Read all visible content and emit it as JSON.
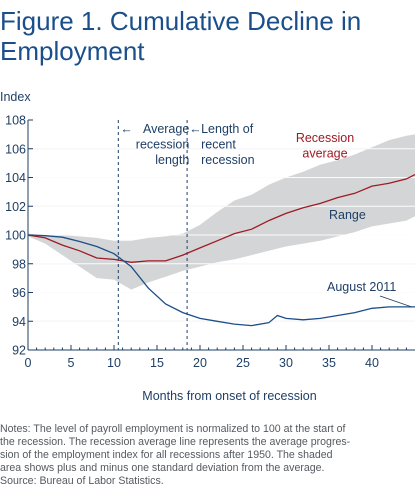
{
  "figure_title_line1": "Figure 1. Cumulative Decline in",
  "figure_title_line2": "Employment",
  "notes": [
    "Notes: The level of payroll employment is normalized to 100 at the start of",
    "the recession. The recession average line represents the average progres-",
    "sion of the employment index for all recessions after 1950. The shaded",
    "area shows plus and minus one standard deviation from the average.",
    "Source: Bureau of Labor Statistics."
  ],
  "colors": {
    "title": "#1a4f8b",
    "axis_text": "#1f3f66",
    "recession_average": "#9e1b24",
    "august_2011": "#1b4e8a",
    "range_fill": "#d4d5d6",
    "grid": "#ffffff",
    "vline": "#1f3f66"
  },
  "chart_data": {
    "type": "line",
    "ylabel": "Index",
    "xlabel": "Months from onset of recession",
    "xlim": [
      0,
      45
    ],
    "ylim": [
      92,
      108
    ],
    "x_ticks": [
      0,
      5,
      10,
      15,
      20,
      25,
      30,
      35,
      40
    ],
    "y_ticks": [
      92,
      94,
      96,
      98,
      100,
      102,
      104,
      106,
      108
    ],
    "grid": true,
    "annotations": [
      {
        "label_lines": [
          "Average",
          "recession",
          "length"
        ],
        "x": 10.5,
        "kind": "vertical-dashed-line"
      },
      {
        "label_lines": [
          "Length of",
          "recent",
          "recession"
        ],
        "x": 18.5,
        "kind": "vertical-dashed-line"
      }
    ],
    "series": [
      {
        "name": "Recession average",
        "label_lines": [
          "Recession",
          "average"
        ],
        "x": [
          0,
          2,
          4,
          6,
          8,
          10,
          12,
          14,
          16,
          18,
          20,
          22,
          24,
          26,
          28,
          30,
          32,
          34,
          36,
          38,
          40,
          42,
          44,
          45
        ],
        "values": [
          100,
          99.8,
          99.3,
          98.9,
          98.4,
          98.3,
          98.1,
          98.2,
          98.2,
          98.6,
          99.1,
          99.6,
          100.1,
          100.4,
          101.0,
          101.5,
          101.9,
          102.2,
          102.6,
          102.9,
          103.4,
          103.6,
          103.9,
          104.2
        ]
      },
      {
        "name": "August 2011",
        "label_lines": [
          "August 2011"
        ],
        "x": [
          0,
          2,
          4,
          6,
          8,
          10,
          12,
          14,
          16,
          18,
          20,
          22,
          24,
          26,
          28,
          29,
          30,
          32,
          34,
          36,
          38,
          40,
          42,
          44,
          45
        ],
        "values": [
          100,
          99.95,
          99.85,
          99.55,
          99.2,
          98.7,
          97.8,
          96.3,
          95.2,
          94.6,
          94.2,
          94.0,
          93.8,
          93.7,
          93.9,
          94.4,
          94.2,
          94.1,
          94.2,
          94.4,
          94.6,
          94.9,
          95.0,
          95.0,
          95.0
        ]
      }
    ],
    "range_band": {
      "name": "Range",
      "label_lines": [
        "Range"
      ],
      "x": [
        0,
        2,
        4,
        6,
        8,
        10,
        12,
        14,
        16,
        18,
        20,
        22,
        24,
        26,
        28,
        30,
        32,
        34,
        36,
        38,
        40,
        42,
        44,
        45
      ],
      "upper": [
        100.1,
        100.0,
        100.0,
        99.9,
        99.8,
        99.6,
        99.6,
        99.8,
        99.9,
        100.1,
        100.7,
        101.6,
        102.4,
        102.8,
        103.5,
        104.0,
        104.4,
        104.9,
        105.2,
        105.6,
        106.1,
        106.6,
        106.9,
        107.0
      ],
      "lower": [
        99.9,
        99.4,
        98.6,
        97.8,
        97.0,
        96.9,
        96.2,
        96.7,
        97.1,
        97.5,
        97.8,
        98.1,
        98.3,
        98.6,
        98.9,
        99.2,
        99.4,
        99.6,
        99.9,
        100.2,
        100.6,
        100.8,
        101.0,
        101.3
      ]
    }
  }
}
